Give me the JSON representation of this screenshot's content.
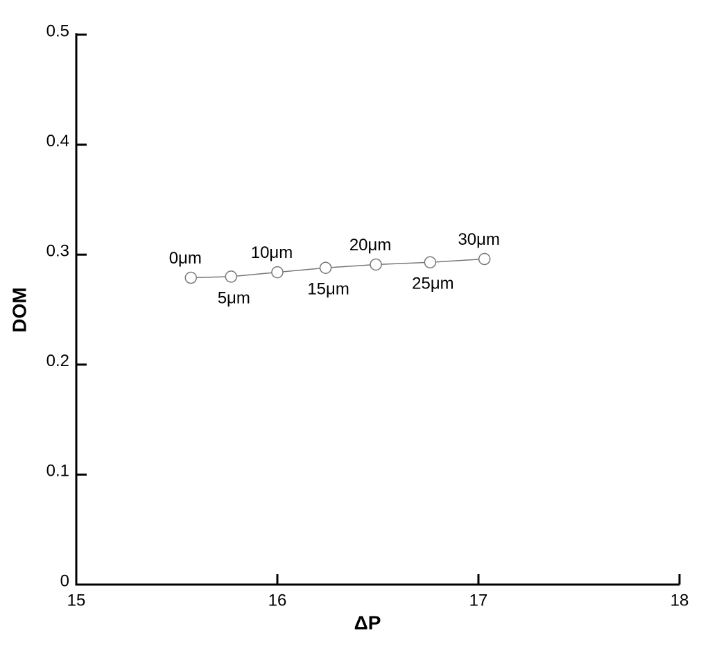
{
  "chart_data": {
    "type": "line",
    "x_label": "ΔP",
    "y_label": "DOM",
    "x": [
      15.57,
      15.77,
      16.0,
      16.24,
      16.49,
      16.76,
      17.03
    ],
    "values": [
      0.279,
      0.28,
      0.284,
      0.288,
      0.291,
      0.293,
      0.296
    ],
    "point_labels": [
      "0μm",
      "5μm",
      "10μm",
      "15μm",
      "20μm",
      "25μm",
      "30μm"
    ],
    "color": "#777777",
    "xlim": [
      15,
      18
    ],
    "xticks": [
      15,
      16,
      17,
      18
    ],
    "ylim": [
      0,
      0.5
    ],
    "yticks": [
      0,
      0.1,
      0.2,
      0.3,
      0.4,
      0.5
    ]
  }
}
